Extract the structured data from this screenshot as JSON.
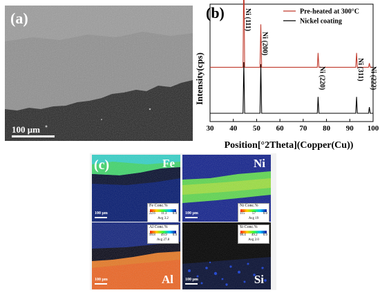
{
  "panel_a": {
    "letter": "(a)",
    "scale_bar": "100 μm"
  },
  "panel_b": {
    "letter": "(b)",
    "x_axis_label": "Position[°2Theta](Copper(Cu))",
    "y_axis_label": "Intensity(cps)",
    "x_ticks": [
      "30",
      "40",
      "50",
      "60",
      "70",
      "80",
      "90",
      "100"
    ],
    "colors": {
      "preheated": "#c0392b",
      "coating": "#000000"
    }
  },
  "panel_c": {
    "letter": "(c)",
    "maps": {
      "fe": {
        "element": "Fe",
        "scale": "100 μm",
        "legend_title": "Fe  Conc.%",
        "ticks": [
          "22.6",
          "11.3",
          "0.0"
        ],
        "avg": "Avg 3.2"
      },
      "ni": {
        "element": "Ni",
        "scale": "100 μm",
        "legend_title": "Ni  Conc.%",
        "ticks": [
          "115",
          "57",
          "0.0"
        ],
        "avg": "Avg 19"
      },
      "al": {
        "element": "Al",
        "scale": "100 μm",
        "legend_title": "Al  Conc.%",
        "ticks": [
          "99.8",
          "49.9",
          "0.0"
        ],
        "avg": "Avg 27.8"
      },
      "si": {
        "element": "Si",
        "scale": "100 μm",
        "legend_title": "Si  Conc.%",
        "ticks": [
          "98.4",
          "49.2",
          "0.0"
        ],
        "avg": "Avg 2.0"
      }
    }
  },
  "chart_data": {
    "type": "line",
    "xlabel": "Position[°2Theta](Copper(Cu))",
    "ylabel": "Intensity(cps)",
    "xlim": [
      30,
      100
    ],
    "x_ticks": [
      30,
      40,
      50,
      60,
      70,
      80,
      90,
      100
    ],
    "legend_placement": "top-right",
    "series": [
      {
        "name": "Pre-heated at 300°C",
        "color": "#c0392b",
        "baseline": 0.45,
        "peaks": [
          {
            "x": 44.5,
            "height": 1.0
          },
          {
            "x": 51.8,
            "height": 0.42
          },
          {
            "x": 76.4,
            "height": 0.14
          },
          {
            "x": 92.9,
            "height": 0.14
          },
          {
            "x": 98.4,
            "height": 0.04
          }
        ]
      },
      {
        "name": "Nickel coating",
        "color": "#000000",
        "baseline": 0.0,
        "peaks": [
          {
            "x": 44.5,
            "height": 0.5
          },
          {
            "x": 51.8,
            "height": 0.48
          },
          {
            "x": 76.4,
            "height": 0.16
          },
          {
            "x": 92.9,
            "height": 0.16
          },
          {
            "x": 98.4,
            "height": 0.06
          }
        ]
      }
    ],
    "annotations": [
      {
        "label": "Ni (111)",
        "x": 44.5
      },
      {
        "label": "Ni (200)",
        "x": 51.8
      },
      {
        "label": "Ni (220)",
        "x": 76.4
      },
      {
        "label": "Ni (311)",
        "x": 92.9
      },
      {
        "label": "Ni (222)",
        "x": 98.4
      }
    ]
  }
}
